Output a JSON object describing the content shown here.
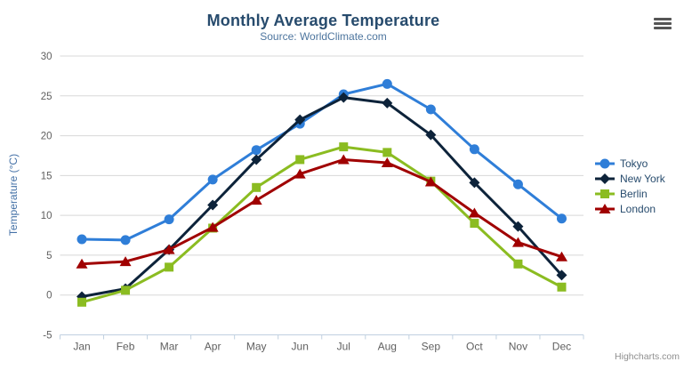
{
  "header": {
    "title": "Monthly Average Temperature",
    "subtitle": "Source: WorldClimate.com"
  },
  "credits": "Highcharts.com",
  "menu": {
    "icon": "hamburger-menu-icon"
  },
  "colors": {
    "title": "#274b6d",
    "subtitle": "#4d759e",
    "y_axis_title": "#4572a7",
    "axis_label": "#606060",
    "grid_line": "#d8d8d8",
    "axis_line": "#c0d0e0",
    "legend_text": "#274b6d",
    "credits_text": "#8f8f8f"
  },
  "chart_data": {
    "type": "line",
    "title": "Monthly Average Temperature",
    "subtitle": "Source: WorldClimate.com",
    "xlabel": "",
    "ylabel": "Temperature (°C)",
    "ylim": [
      -5,
      30
    ],
    "ytick_step": 5,
    "grid": true,
    "legend_position": "right",
    "categories": [
      "Jan",
      "Feb",
      "Mar",
      "Apr",
      "May",
      "Jun",
      "Jul",
      "Aug",
      "Sep",
      "Oct",
      "Nov",
      "Dec"
    ],
    "series": [
      {
        "name": "Tokyo",
        "color": "#2f7ed8",
        "marker": "circle",
        "values": [
          7.0,
          6.9,
          9.5,
          14.5,
          18.2,
          21.5,
          25.2,
          26.5,
          23.3,
          18.3,
          13.9,
          9.6
        ]
      },
      {
        "name": "New York",
        "color": "#0d233a",
        "marker": "diamond",
        "values": [
          -0.2,
          0.8,
          5.7,
          11.3,
          17.0,
          22.0,
          24.8,
          24.1,
          20.1,
          14.1,
          8.6,
          2.5
        ]
      },
      {
        "name": "Berlin",
        "color": "#8bbc21",
        "marker": "square",
        "values": [
          -0.9,
          0.6,
          3.5,
          8.4,
          13.5,
          17.0,
          18.6,
          17.9,
          14.3,
          9.0,
          3.9,
          1.0
        ]
      },
      {
        "name": "London",
        "color": "#a00000",
        "marker": "triangle",
        "values": [
          3.9,
          4.2,
          5.7,
          8.5,
          11.9,
          15.2,
          17.0,
          16.6,
          14.2,
          10.3,
          6.6,
          4.8
        ]
      }
    ]
  }
}
